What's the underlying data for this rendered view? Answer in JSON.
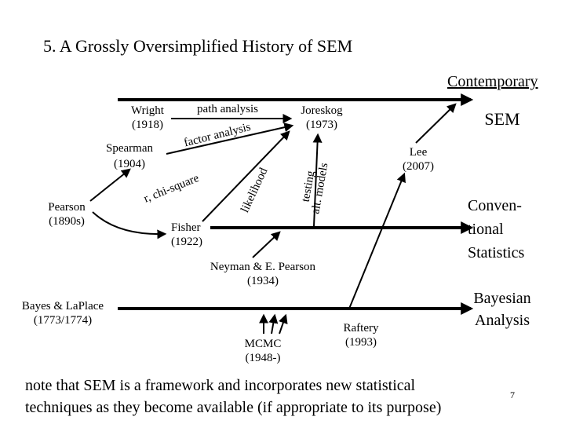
{
  "title": "5. A Grossly Oversimplified History of SEM",
  "header": {
    "contemporary": "Contemporary"
  },
  "nodes": [
    {
      "id": "wright",
      "lines": [
        "Wright",
        "(1918)"
      ]
    },
    {
      "id": "path",
      "lines": [
        "path analysis"
      ]
    },
    {
      "id": "joreskog",
      "lines": [
        "Joreskog",
        "(1973)"
      ]
    },
    {
      "id": "sem",
      "lines": [
        "SEM"
      ]
    },
    {
      "id": "spearman",
      "lines": [
        "Spearman",
        "(1904)"
      ]
    },
    {
      "id": "factor",
      "lines": [
        "factor analysis"
      ]
    },
    {
      "id": "lee",
      "lines": [
        "Lee",
        "(2007)"
      ]
    },
    {
      "id": "pearson",
      "lines": [
        "Pearson",
        "(1890s)"
      ]
    },
    {
      "id": "chisq",
      "lines": [
        "r, chi-square"
      ]
    },
    {
      "id": "likelihood",
      "lines": [
        "likelihood"
      ]
    },
    {
      "id": "testing",
      "lines": [
        "testing",
        "alt. models"
      ]
    },
    {
      "id": "conventional",
      "lines": [
        "Conven-",
        "tional",
        "Statistics"
      ]
    },
    {
      "id": "fisher",
      "lines": [
        "Fisher",
        "(1922)"
      ]
    },
    {
      "id": "neyman",
      "lines": [
        "Neyman & E. Pearson",
        "(1934)"
      ]
    },
    {
      "id": "bayes",
      "lines": [
        "Bayes & LaPlace",
        "(1773/1774)"
      ]
    },
    {
      "id": "bayesian",
      "lines": [
        "Bayesian",
        "Analysis"
      ]
    },
    {
      "id": "mcmc",
      "lines": [
        "MCMC",
        "(1948-)"
      ]
    },
    {
      "id": "raftery",
      "lines": [
        "Raftery",
        "(1993)"
      ]
    }
  ],
  "note": [
    "note that SEM is a framework and incorporates new statistical",
    "techniques as they become available (if appropriate to its purpose)"
  ],
  "page_number": "7"
}
